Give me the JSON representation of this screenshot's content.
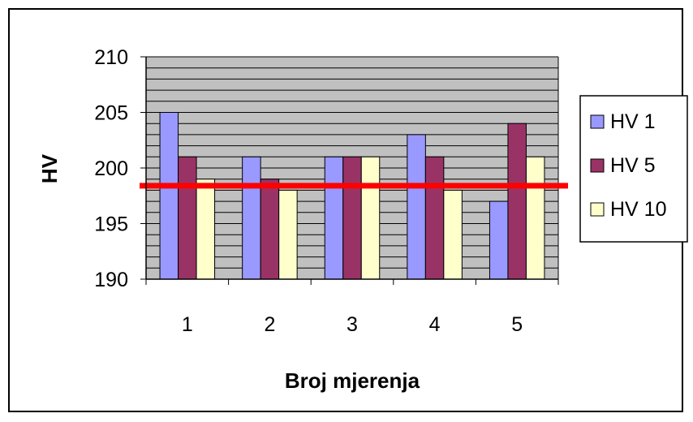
{
  "chart_data": {
    "type": "bar",
    "xlabel": "Broj mjerenja",
    "ylabel": "HV",
    "categories": [
      "1",
      "2",
      "3",
      "4",
      "5"
    ],
    "ylim": [
      190,
      210
    ],
    "yticks": [
      190,
      195,
      200,
      205,
      210
    ],
    "grid": true,
    "legend_position": "right",
    "series": [
      {
        "name": "HV 1",
        "values": [
          205,
          201,
          201,
          203,
          197
        ]
      },
      {
        "name": "HV 5",
        "values": [
          201,
          199,
          201,
          201,
          204
        ]
      },
      {
        "name": "HV 10",
        "values": [
          199,
          198,
          201,
          198,
          201
        ]
      }
    ],
    "reference_line": {
      "value": 198.4
    },
    "colors": {
      "series": [
        "#9999FF",
        "#993366",
        "#FFFFCC"
      ],
      "plot_background": "#C0C0C0",
      "reference_line": "#FF0000"
    }
  }
}
